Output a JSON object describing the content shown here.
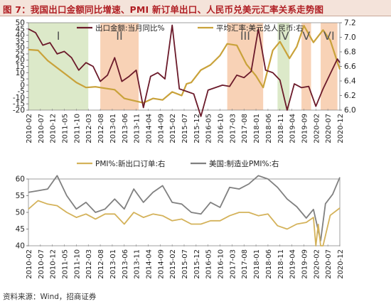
{
  "title": "图 7：我国出口金额同比增速、PMI 新订单出口、人民币兑美元汇率关系走势图",
  "source": "资料来源：Wind，招商证券",
  "colors": {
    "export": "#6b1a2a",
    "fx": "#c9a23a",
    "pmi_new_export": "#d4b25a",
    "pmi_us": "#808080",
    "shade_green": "#dce9c9",
    "shade_orange": "#f8d2b6",
    "title_red": "#b01f24"
  },
  "x_tick_labels": [
    "2010-02",
    "2010-07",
    "2010-12",
    "2011-05",
    "2011-10",
    "2012-03",
    "2012-08",
    "2013-01",
    "2013-06",
    "2013-11",
    "2014-04",
    "2014-09",
    "2015-02",
    "2015-07",
    "2015-12",
    "2016-05",
    "2016-10",
    "2017-03",
    "2017-08",
    "2018-01",
    "2018-06",
    "2018-11",
    "2019-04",
    "2019-09",
    "2020-02",
    "2020-07",
    "2020-12"
  ],
  "chart_data": [
    {
      "type": "line",
      "legend": [
        "出口金额:当月同比%",
        "平均汇率:美元兑人民币:右"
      ],
      "x_range": [
        "2010-02",
        "2020-12"
      ],
      "y_left": {
        "ticks": [
          -20,
          -15,
          -10,
          -5,
          0,
          5,
          10,
          15,
          20,
          25,
          30,
          35,
          40,
          45,
          50
        ],
        "ylim": [
          -20,
          50
        ]
      },
      "y_right": {
        "ticks": [
          6.0,
          6.2,
          6.4,
          6.6,
          6.8,
          7.0,
          7.2
        ],
        "ylim": [
          6.0,
          7.2
        ]
      },
      "periods": [
        {
          "label": "I",
          "start": "2010-02",
          "end": "2012-03",
          "color": "green"
        },
        {
          "label": "II",
          "start": "2012-08",
          "end": "2013-12",
          "color": "orange"
        },
        {
          "label": "III",
          "start": "2017-01",
          "end": "2018-04",
          "color": "orange"
        },
        {
          "label": "IV",
          "start": "2018-10",
          "end": "2019-03",
          "color": "green"
        },
        {
          "label": "V",
          "start": "2019-08",
          "end": "2019-12",
          "color": "orange"
        },
        {
          "label": "VI",
          "start": "2020-04",
          "end": "2020-11",
          "color": "orange"
        }
      ],
      "series": [
        {
          "name": "出口金额:当月同比%",
          "axis": "left",
          "key": "export",
          "x": [
            "2010-02",
            "2010-05",
            "2010-08",
            "2010-11",
            "2011-02",
            "2011-05",
            "2011-08",
            "2011-11",
            "2012-02",
            "2012-05",
            "2012-08",
            "2012-11",
            "2013-02",
            "2013-05",
            "2013-08",
            "2013-11",
            "2014-02",
            "2014-05",
            "2014-08",
            "2014-11",
            "2015-02",
            "2015-05",
            "2015-08",
            "2015-11",
            "2016-02",
            "2016-05",
            "2016-08",
            "2016-11",
            "2017-02",
            "2017-05",
            "2017-08",
            "2017-11",
            "2018-02",
            "2018-05",
            "2018-08",
            "2018-11",
            "2019-02",
            "2019-05",
            "2019-08",
            "2019-11",
            "2020-02",
            "2020-05",
            "2020-08",
            "2020-11",
            "2020-12"
          ],
          "values": [
            45,
            42,
            32,
            34,
            25,
            27,
            22,
            12,
            18,
            15,
            3,
            8,
            22,
            3,
            7,
            12,
            -18,
            7,
            10,
            5,
            48,
            -3,
            -5,
            -7,
            -25,
            -4,
            -2,
            0,
            -1,
            8,
            6,
            11,
            45,
            12,
            10,
            4,
            -20,
            1,
            -2,
            -1,
            -17,
            -3,
            9,
            21,
            18
          ]
        },
        {
          "name": "平均汇率:美元兑人民币:右",
          "axis": "right",
          "key": "fx",
          "x": [
            "2010-02",
            "2010-06",
            "2010-10",
            "2011-02",
            "2011-06",
            "2011-10",
            "2012-02",
            "2012-06",
            "2012-10",
            "2013-02",
            "2013-06",
            "2013-10",
            "2014-02",
            "2014-06",
            "2014-10",
            "2015-02",
            "2015-06",
            "2015-08",
            "2015-10",
            "2016-02",
            "2016-06",
            "2016-10",
            "2017-01",
            "2017-05",
            "2017-09",
            "2018-01",
            "2018-04",
            "2018-08",
            "2018-11",
            "2019-03",
            "2019-06",
            "2019-09",
            "2020-01",
            "2020-05",
            "2020-08",
            "2020-12"
          ],
          "values": [
            6.83,
            6.82,
            6.68,
            6.58,
            6.48,
            6.38,
            6.31,
            6.32,
            6.3,
            6.28,
            6.16,
            6.13,
            6.1,
            6.16,
            6.14,
            6.25,
            6.2,
            6.36,
            6.38,
            6.55,
            6.62,
            6.75,
            6.91,
            6.89,
            6.63,
            6.47,
            6.31,
            6.82,
            6.94,
            6.71,
            6.87,
            7.16,
            6.93,
            7.1,
            6.96,
            6.56
          ]
        }
      ]
    },
    {
      "type": "line",
      "legend": [
        "PMI%:新出口订单:右",
        "美国:制造业PMI%:右"
      ],
      "x_range": [
        "2010-02",
        "2020-12"
      ],
      "y_right": {
        "ticks": [
          40,
          45,
          50,
          55,
          60
        ],
        "ylim": [
          40,
          60
        ]
      },
      "series": [
        {
          "name": "PMI%:新出口订单:右",
          "axis": "right",
          "key": "pmi_new_export",
          "x": [
            "2010-02",
            "2010-06",
            "2010-10",
            "2011-02",
            "2011-06",
            "2011-10",
            "2012-02",
            "2012-06",
            "2012-10",
            "2013-02",
            "2013-06",
            "2013-10",
            "2014-02",
            "2014-06",
            "2014-10",
            "2015-02",
            "2015-06",
            "2015-10",
            "2016-02",
            "2016-06",
            "2016-10",
            "2017-02",
            "2017-06",
            "2017-10",
            "2018-02",
            "2018-06",
            "2018-10",
            "2019-02",
            "2019-06",
            "2019-10",
            "2020-01",
            "2020-02",
            "2020-03",
            "2020-04",
            "2020-05",
            "2020-08",
            "2020-12"
          ],
          "values": [
            51,
            53.5,
            52.5,
            52,
            50,
            48.5,
            49.5,
            48,
            49.5,
            49.5,
            46.5,
            50,
            48.5,
            49.5,
            49,
            47.5,
            48,
            46.5,
            46.5,
            47.5,
            47.5,
            49,
            50,
            50,
            49,
            49.5,
            46,
            45,
            46.5,
            47,
            48.5,
            28.7,
            46.4,
            33.5,
            35.3,
            49.1,
            51.3
          ]
        },
        {
          "name": "美国:制造业PMI%:右",
          "axis": "right",
          "key": "pmi_us",
          "x": [
            "2010-02",
            "2010-06",
            "2010-10",
            "2011-02",
            "2011-06",
            "2011-10",
            "2012-02",
            "2012-06",
            "2012-10",
            "2013-02",
            "2013-06",
            "2013-10",
            "2014-02",
            "2014-06",
            "2014-10",
            "2015-02",
            "2015-06",
            "2015-10",
            "2016-02",
            "2016-06",
            "2016-10",
            "2017-02",
            "2017-06",
            "2017-10",
            "2018-02",
            "2018-06",
            "2018-10",
            "2019-02",
            "2019-06",
            "2019-10",
            "2020-01",
            "2020-04",
            "2020-06",
            "2020-09",
            "2020-12"
          ],
          "values": [
            56,
            56.5,
            57,
            61,
            55,
            51,
            53,
            50,
            51,
            54,
            51,
            57,
            53,
            56,
            58,
            53,
            52.5,
            50,
            49.5,
            53,
            51.5,
            57.5,
            57,
            58.5,
            61,
            60,
            57.5,
            54,
            51.7,
            48.3,
            50.9,
            41.5,
            52.6,
            55.4,
            60.5
          ]
        }
      ]
    }
  ]
}
